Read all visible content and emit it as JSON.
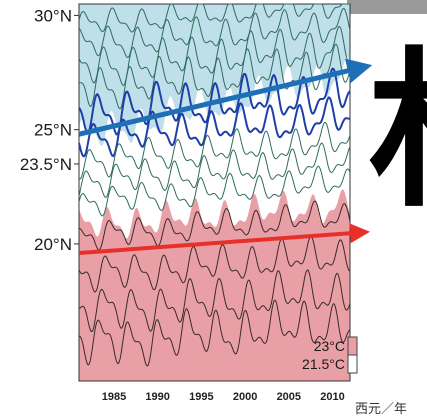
{
  "big_character": "林",
  "chart_data": {
    "type": "heatmap",
    "title": "",
    "xlabel": "西元／年",
    "ylabel": "",
    "x_ticks": [
      "1985",
      "1990",
      "1995",
      "2000",
      "2005",
      "2010"
    ],
    "y_ticks": [
      "30°N",
      "25°N",
      "23.5°N",
      "20°N"
    ],
    "xlim": [
      1981,
      2012
    ],
    "ylim": [
      14,
      30.5
    ],
    "legend": [
      {
        "label": "23°C",
        "color": "#e8a0a6"
      },
      {
        "label": "21.5°C",
        "color": "#ffffff"
      }
    ],
    "isotherm_latitude": {
      "23C": {
        "y1981": 19.6,
        "y2012": 20.5
      },
      "21.5C": {
        "y1981": 24.8,
        "y2012": 27.7
      }
    },
    "colors": {
      "warm": "#e8a0a6",
      "neutral": "#ffffff",
      "cool": "#bfe0ea",
      "trend_blue": "#1e6fb8",
      "trend_red": "#e8302a",
      "contour": "#2f6b5e",
      "contour_key": "#1f3fa8"
    }
  }
}
